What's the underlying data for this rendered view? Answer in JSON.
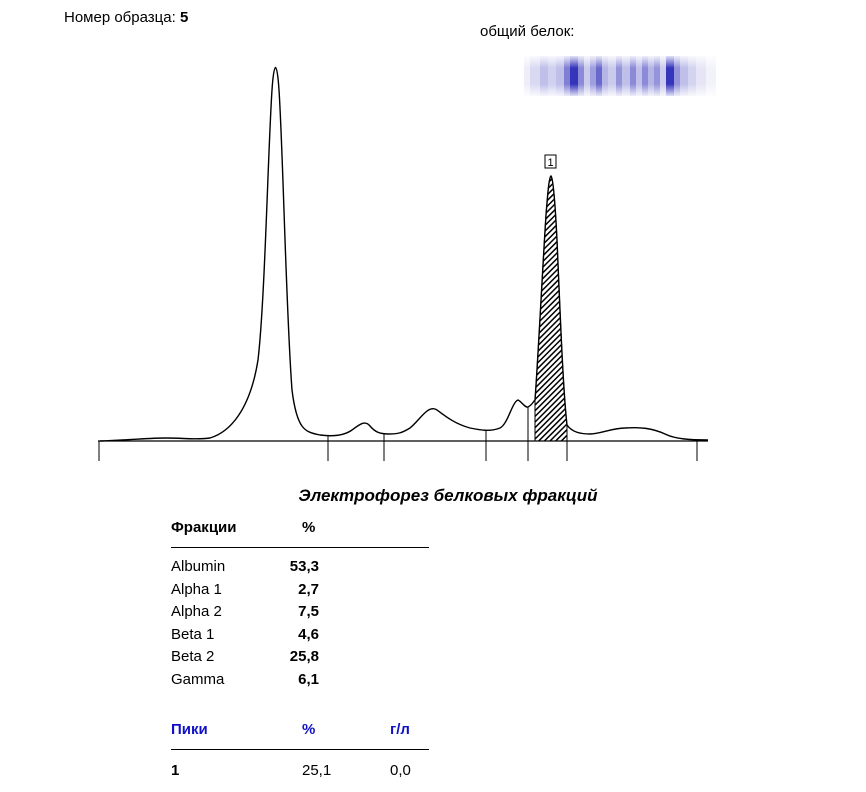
{
  "header": {
    "sample_label": "Номер образца:",
    "sample_number": "5",
    "total_protein_label": "общий белок:"
  },
  "report": {
    "title": "Электрофорез белковых фракций",
    "fractions_header": "Фракции",
    "percent_header": "%",
    "fractions": [
      {
        "name": "Albumin",
        "value": "53,3"
      },
      {
        "name": "Alpha 1",
        "value": "2,7"
      },
      {
        "name": "Alpha 2",
        "value": "7,5"
      },
      {
        "name": "Beta 1",
        "value": "4,6"
      },
      {
        "name": "Beta 2",
        "value": "25,8"
      },
      {
        "name": "Gamma",
        "value": "6,1"
      }
    ],
    "peaks_header": "Пики",
    "peaks_percent_header": "%",
    "peaks_unit_header": "г/л",
    "peaks": [
      {
        "id": "1",
        "percent": "25,1",
        "gl": "0,0"
      }
    ]
  },
  "electropherogram": {
    "peak_marker": "1",
    "colors": {
      "curve": "#000000",
      "gel_band": "#2a2ab8",
      "header_blue": "#1010c8"
    }
  }
}
